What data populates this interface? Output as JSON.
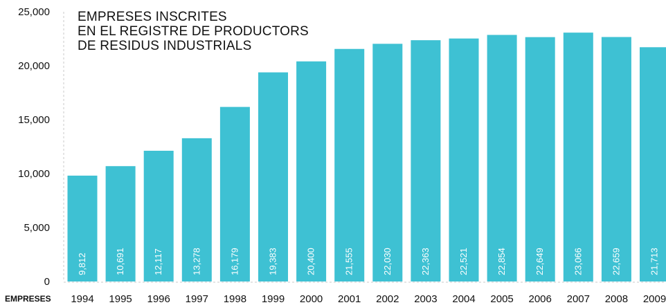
{
  "chart_data": {
    "type": "bar",
    "title_lines": [
      "EMPRESES INSCRITES",
      "EN EL REGISTRE DE PRODUCTORS",
      "DE RESIDUS INDUSTRIALS"
    ],
    "xlabel": "EMPRESES",
    "ylabel": "",
    "ylim": [
      0,
      25000
    ],
    "yticks": [
      "0",
      "5,000",
      "10,000",
      "15,000",
      "20,000",
      "25,000"
    ],
    "ytick_values": [
      0,
      5000,
      10000,
      15000,
      20000,
      25000
    ],
    "categories": [
      "1994",
      "1995",
      "1996",
      "1997",
      "1998",
      "1999",
      "2000",
      "2001",
      "2002",
      "2003",
      "2004",
      "2005",
      "2006",
      "2007",
      "2008",
      "2009"
    ],
    "values": [
      9812,
      10691,
      12117,
      13278,
      16179,
      19383,
      20400,
      21555,
      22030,
      22363,
      22521,
      22854,
      22649,
      23066,
      22659,
      21713
    ],
    "value_labels": [
      "9,812",
      "10,691",
      "12,117",
      "13,278",
      "16,179",
      "19,383",
      "20,400",
      "21,555",
      "22,030",
      "22,363",
      "22,521",
      "22,854",
      "22,649",
      "23,066",
      "22,659",
      "21,713"
    ],
    "bar_color": "#3ec1d3",
    "grid": false,
    "legend": "none"
  }
}
